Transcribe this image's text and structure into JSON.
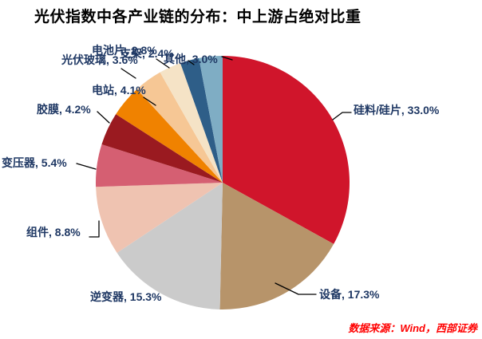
{
  "title": "光伏指数中各产业链的分布：中上游占绝对比重",
  "source": "数据来源：Wind，西部证券",
  "chart_data": {
    "type": "pie",
    "title": "光伏指数中各产业链的分布：中上游占绝对比重",
    "start_angle_deg": 0,
    "direction": "clockwise",
    "legend_position": "none",
    "slices": [
      {
        "label": "硅料/硅片",
        "value": 33.0,
        "display": "硅料/硅片, 33.0%",
        "color": "#D0152B"
      },
      {
        "label": "设备",
        "value": 17.3,
        "display": "设备, 17.3%",
        "color": "#B7946A"
      },
      {
        "label": "逆变器",
        "value": 15.3,
        "display": "逆变器, 15.3%",
        "color": "#CBCBCB"
      },
      {
        "label": "组件",
        "value": 8.8,
        "display": "组件, 8.8%",
        "color": "#EFC3B1"
      },
      {
        "label": "变压器",
        "value": 5.4,
        "display": "变压器, 5.4%",
        "color": "#D55F72"
      },
      {
        "label": "胶膜",
        "value": 4.2,
        "display": "胶膜, 4.2%",
        "color": "#9A1A20"
      },
      {
        "label": "电站",
        "value": 4.1,
        "display": "电站, 4.1%",
        "color": "#F08200"
      },
      {
        "label": "光伏玻璃",
        "value": 3.6,
        "display": "光伏玻璃, 3.6%",
        "color": "#F6C795"
      },
      {
        "label": "电池片",
        "value": 2.8,
        "display": "电池片, 2.8%",
        "color": "#F5E3C6"
      },
      {
        "label": "支架",
        "value": 2.4,
        "display": "支架, 2.4%",
        "color": "#2E5E88"
      },
      {
        "label": "其他",
        "value": 3.0,
        "display": "其他, 3.0%",
        "color": "#7FADC4"
      }
    ],
    "source": "数据来源：Wind，西部证券"
  }
}
